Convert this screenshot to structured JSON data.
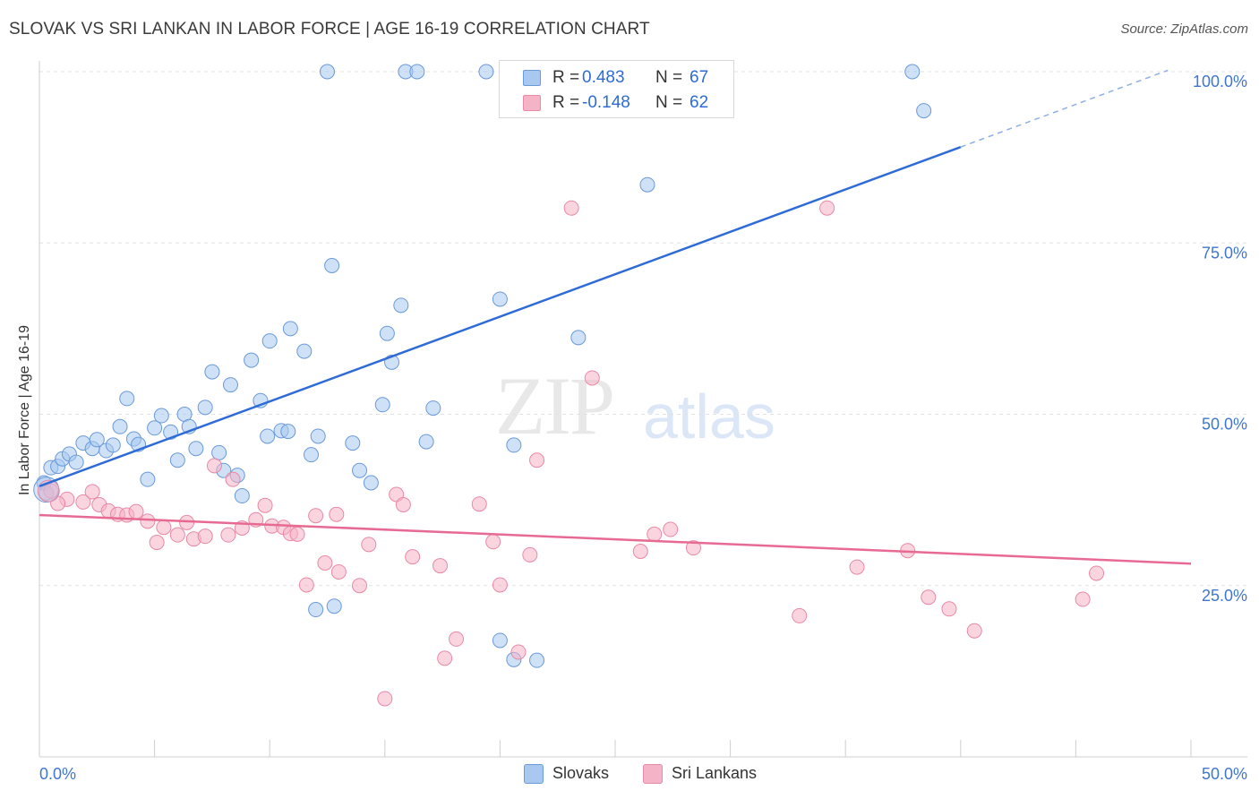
{
  "title": "SLOVAK VS SRI LANKAN IN LABOR FORCE | AGE 16-19 CORRELATION CHART",
  "source": "Source: ZipAtlas.com",
  "watermark": {
    "zip": "ZIP",
    "atlas": "atlas"
  },
  "stats": [
    {
      "r_label": "R =",
      "r_value": "0.483",
      "n_label": "N =",
      "n_value": "67",
      "color": "#a8c8f0"
    },
    {
      "r_label": "R =",
      "r_value": "-0.148",
      "n_label": "N =",
      "n_value": "62",
      "color": "#f5b3c7"
    }
  ],
  "legend": [
    {
      "label": "Slovaks",
      "color": "#a8c8f0"
    },
    {
      "label": "Sri Lankans",
      "color": "#f5b3c7"
    }
  ],
  "chart_data": {
    "type": "scatter",
    "title": "SLOVAK VS SRI LANKAN IN LABOR FORCE | AGE 16-19 CORRELATION CHART",
    "xlabel": "",
    "ylabel": "In Labor Force | Age 16-19",
    "xlim": [
      0,
      50
    ],
    "ylim": [
      0,
      100
    ],
    "x_tick_labels": [
      {
        "value": 0,
        "label": "0.0%"
      },
      {
        "value": 50,
        "label": "50.0%"
      }
    ],
    "y_tick_labels": [
      {
        "value": 25,
        "label": "25.0%"
      },
      {
        "value": 50,
        "label": "50.0%"
      },
      {
        "value": 75,
        "label": "75.0%"
      },
      {
        "value": 100,
        "label": "100.0%"
      }
    ],
    "grid": true,
    "legend_position": "bottom-center",
    "series": [
      {
        "name": "Slovaks",
        "color": "#a8c8f0",
        "stroke": "#6a9ad8",
        "trend": {
          "x0": 0,
          "y0": 39.5,
          "x1": 40,
          "y1": 89,
          "dash_to_x": 49,
          "dash_to_y": 100.2,
          "color": "#2e6bd6"
        },
        "points": [
          [
            0.5,
            42.2
          ],
          [
            0.8,
            42.4
          ],
          [
            1.0,
            43.5
          ],
          [
            1.3,
            44.2
          ],
          [
            1.6,
            43.0
          ],
          [
            1.9,
            45.8
          ],
          [
            2.3,
            45.0
          ],
          [
            2.5,
            46.3
          ],
          [
            2.9,
            44.7
          ],
          [
            3.2,
            45.5
          ],
          [
            3.5,
            48.2
          ],
          [
            3.8,
            52.3
          ],
          [
            4.1,
            46.4
          ],
          [
            4.3,
            45.6
          ],
          [
            4.7,
            40.5
          ],
          [
            5.0,
            48.0
          ],
          [
            5.3,
            49.8
          ],
          [
            5.7,
            47.4
          ],
          [
            6.0,
            43.3
          ],
          [
            6.3,
            50.0
          ],
          [
            6.5,
            48.2
          ],
          [
            6.8,
            45.0
          ],
          [
            7.2,
            51.0
          ],
          [
            7.5,
            56.2
          ],
          [
            7.8,
            44.4
          ],
          [
            8.0,
            41.8
          ],
          [
            8.3,
            54.3
          ],
          [
            8.6,
            41.1
          ],
          [
            8.8,
            38.1
          ],
          [
            9.2,
            57.9
          ],
          [
            9.6,
            52.0
          ],
          [
            9.9,
            46.8
          ],
          [
            10.0,
            60.7
          ],
          [
            10.5,
            47.6
          ],
          [
            10.8,
            47.5
          ],
          [
            10.9,
            62.5
          ],
          [
            11.5,
            59.2
          ],
          [
            11.8,
            44.1
          ],
          [
            12.1,
            46.8
          ],
          [
            12.5,
            100.0
          ],
          [
            12.7,
            71.7
          ],
          [
            12.8,
            22.0
          ],
          [
            13.6,
            45.8
          ],
          [
            13.9,
            41.8
          ],
          [
            14.4,
            40.0
          ],
          [
            14.9,
            51.4
          ],
          [
            15.1,
            61.8
          ],
          [
            15.3,
            57.6
          ],
          [
            15.7,
            65.9
          ],
          [
            15.9,
            100.0
          ],
          [
            16.4,
            100.0
          ],
          [
            16.8,
            46.0
          ],
          [
            17.1,
            50.9
          ],
          [
            19.4,
            100.0
          ],
          [
            20.0,
            66.8
          ],
          [
            20.6,
            45.5
          ],
          [
            20.6,
            14.2
          ],
          [
            21.6,
            14.1
          ],
          [
            23.4,
            61.2
          ],
          [
            26.4,
            83.5
          ],
          [
            37.9,
            100.0
          ],
          [
            38.4,
            94.3
          ],
          [
            20.0,
            17.0
          ],
          [
            12.0,
            21.5
          ],
          [
            21.5,
            100.0
          ],
          [
            0.2,
            40.0
          ],
          [
            0.3,
            38.5
          ]
        ]
      },
      {
        "name": "Sri Lankans",
        "color": "#f5b3c7",
        "stroke": "#e889a6",
        "trend": {
          "x0": 0,
          "y0": 35.3,
          "x1": 50,
          "y1": 28.2,
          "color": "#e76a93"
        },
        "points": [
          [
            0.5,
            38.8
          ],
          [
            1.2,
            37.6
          ],
          [
            1.9,
            37.2
          ],
          [
            2.3,
            38.7
          ],
          [
            2.6,
            36.8
          ],
          [
            3.0,
            35.9
          ],
          [
            3.4,
            35.4
          ],
          [
            3.8,
            35.3
          ],
          [
            4.2,
            35.8
          ],
          [
            4.7,
            34.4
          ],
          [
            5.1,
            31.3
          ],
          [
            5.4,
            33.5
          ],
          [
            6.0,
            32.4
          ],
          [
            6.4,
            34.2
          ],
          [
            6.7,
            31.8
          ],
          [
            7.2,
            32.2
          ],
          [
            7.6,
            42.5
          ],
          [
            8.2,
            32.4
          ],
          [
            8.4,
            40.5
          ],
          [
            8.8,
            33.4
          ],
          [
            9.4,
            34.6
          ],
          [
            9.8,
            36.7
          ],
          [
            10.1,
            33.7
          ],
          [
            10.6,
            33.5
          ],
          [
            10.9,
            32.6
          ],
          [
            11.2,
            32.5
          ],
          [
            11.6,
            25.1
          ],
          [
            12.0,
            35.2
          ],
          [
            12.4,
            28.3
          ],
          [
            12.9,
            35.4
          ],
          [
            13.9,
            25.0
          ],
          [
            14.3,
            31.0
          ],
          [
            15.0,
            8.5
          ],
          [
            15.5,
            38.3
          ],
          [
            15.8,
            36.8
          ],
          [
            16.2,
            29.2
          ],
          [
            17.4,
            27.9
          ],
          [
            17.6,
            14.4
          ],
          [
            18.1,
            17.2
          ],
          [
            19.1,
            36.9
          ],
          [
            19.7,
            31.4
          ],
          [
            20.0,
            25.1
          ],
          [
            20.8,
            15.3
          ],
          [
            21.3,
            29.5
          ],
          [
            21.6,
            43.3
          ],
          [
            23.1,
            80.1
          ],
          [
            24.0,
            55.3
          ],
          [
            26.1,
            30.0
          ],
          [
            26.7,
            32.5
          ],
          [
            27.4,
            33.2
          ],
          [
            28.4,
            30.5
          ],
          [
            33.0,
            20.6
          ],
          [
            35.5,
            27.7
          ],
          [
            34.2,
            80.1
          ],
          [
            37.7,
            30.1
          ],
          [
            38.6,
            23.3
          ],
          [
            39.5,
            21.6
          ],
          [
            40.6,
            18.4
          ],
          [
            45.3,
            23.0
          ],
          [
            45.9,
            26.8
          ],
          [
            0.8,
            37.0
          ],
          [
            13.0,
            27.0
          ]
        ]
      }
    ]
  }
}
